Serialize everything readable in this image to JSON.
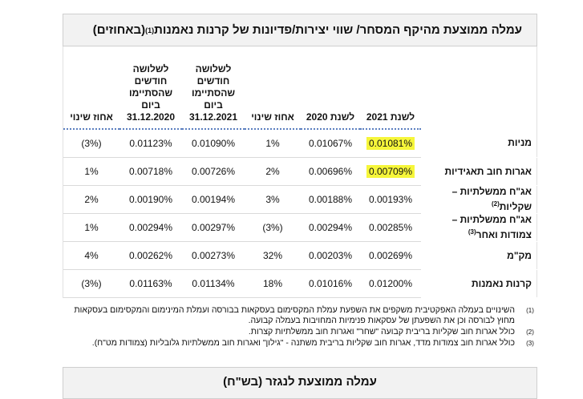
{
  "title": {
    "text": "עמלה ממוצעת מהיקף המסחר/ שווי יצירות/פדיונות של קרנות נאמנות",
    "sup": "(1)",
    "unit": " (באחוזים)"
  },
  "table": {
    "headers": {
      "y2021": "לשנת 2021",
      "y2020": "לשנת 2020",
      "change1": "אחוז שינוי",
      "q2021": [
        "לשלושה",
        "חודשים",
        "שהסתיימו",
        "ביום",
        "31.12.2021"
      ],
      "q2020": [
        "לשלושה",
        "חודשים",
        "שהסתיימו",
        "ביום",
        "31.12.2020"
      ],
      "change2": "אחוז שינוי"
    },
    "rows": [
      {
        "label": "מניות",
        "sup": "",
        "y2021": "0.01081%",
        "y2020": "0.01067%",
        "change1": "1%",
        "q2021": "0.01090%",
        "q2020": "0.01123%",
        "change2": "(3%)"
      },
      {
        "label": "אגרות חוב תאגידיות",
        "sup": "",
        "y2021": "0.00709%",
        "y2020": "0.00696%",
        "change1": "2%",
        "q2021": "0.00726%",
        "q2020": "0.00718%",
        "change2": "1%"
      },
      {
        "label": "אג\"ח ממשלתיות – שקליות",
        "sup": "(2)",
        "y2021": "0.00193%",
        "y2020": "0.00188%",
        "change1": "3%",
        "q2021": "0.00194%",
        "q2020": "0.00190%",
        "change2": "2%"
      },
      {
        "label": "אג\"ח ממשלתיות – צמודות ואחר",
        "sup": "(3)",
        "y2021": "0.00285%",
        "y2020": "0.00294%",
        "change1": "(3%)",
        "q2021": "0.00297%",
        "q2020": "0.00294%",
        "change2": "1%"
      },
      {
        "label": "מק\"מ",
        "sup": "",
        "y2021": "0.00269%",
        "y2020": "0.00203%",
        "change1": "32%",
        "q2021": "0.00273%",
        "q2020": "0.00262%",
        "change2": "4%"
      },
      {
        "label": "קרנות נאמנות",
        "sup": "",
        "y2021": "0.01200%",
        "y2020": "0.01016%",
        "change1": "18%",
        "q2021": "0.01134%",
        "q2020": "0.01163%",
        "change2": "(3%)"
      }
    ]
  },
  "notes": [
    {
      "num": "(1)",
      "text": "השינויים בעמלה האפקטיבית משקפים את השפעת עמלת המקסימום בעסקאות בבורסה ועמלת המינימום והמקסימום בעסקאות מחוץ לבורסה וכן את השפעתן של עסקאות פנימיות המחויבות בעמלה קבועה."
    },
    {
      "num": "(2)",
      "text": "כולל אגרות חוב שקליות בריבית קבועה \"שחר\" ואגרות חוב ממשלתיות קצרות."
    },
    {
      "num": "(3)",
      "text": "כולל אגרות חוב צמודות מדד, אגרות חוב שקליות בריבית משתנה - \"גילון\" ואגרות חוב ממשלתיות גלובליות (צמודות מט\"ח)."
    }
  ],
  "bottom_title": "עמלה ממוצעת לנגזר (בש\"ח)",
  "colors": {
    "highlight": "#f6f63a",
    "header_bg": "#f2f2f2",
    "dotted_rule": "#5b7fc0"
  }
}
